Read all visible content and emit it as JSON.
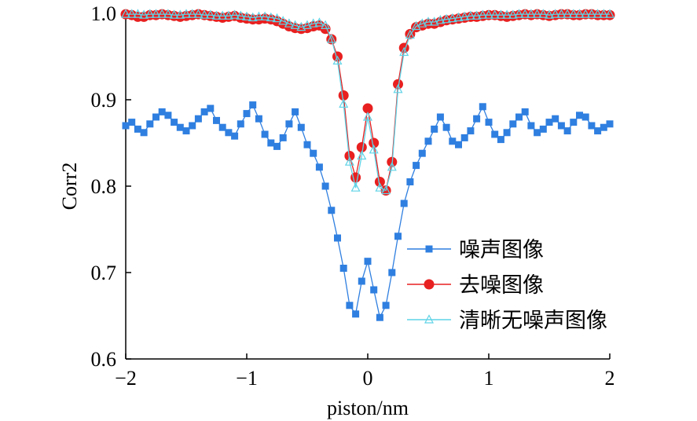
{
  "chart_data": {
    "type": "line",
    "title": "",
    "xlabel": "piston/nm",
    "ylabel": "Corr2",
    "xlim": [
      -2,
      2
    ],
    "ylim": [
      0.6,
      1.0
    ],
    "xticks": [
      -2,
      -1,
      0,
      1,
      2
    ],
    "xtick_labels": [
      "−2",
      "−1",
      "0",
      "1",
      "2"
    ],
    "yticks": [
      0.6,
      0.7,
      0.8,
      0.9,
      1.0
    ],
    "ytick_labels": [
      "0.6",
      "0.7",
      "0.8",
      "0.9",
      "1.0"
    ],
    "legend_position": "lower-right",
    "x": [
      -2.0,
      -1.95,
      -1.9,
      -1.85,
      -1.8,
      -1.75,
      -1.7,
      -1.65,
      -1.6,
      -1.55,
      -1.5,
      -1.45,
      -1.4,
      -1.35,
      -1.3,
      -1.25,
      -1.2,
      -1.15,
      -1.1,
      -1.05,
      -1.0,
      -0.95,
      -0.9,
      -0.85,
      -0.8,
      -0.75,
      -0.7,
      -0.65,
      -0.6,
      -0.55,
      -0.5,
      -0.45,
      -0.4,
      -0.35,
      -0.3,
      -0.25,
      -0.2,
      -0.15,
      -0.1,
      -0.05,
      0.0,
      0.05,
      0.1,
      0.15,
      0.2,
      0.25,
      0.3,
      0.35,
      0.4,
      0.45,
      0.5,
      0.55,
      0.6,
      0.65,
      0.7,
      0.75,
      0.8,
      0.85,
      0.9,
      0.95,
      1.0,
      1.05,
      1.1,
      1.15,
      1.2,
      1.25,
      1.3,
      1.35,
      1.4,
      1.45,
      1.5,
      1.55,
      1.6,
      1.65,
      1.7,
      1.75,
      1.8,
      1.85,
      1.9,
      1.95,
      2.0
    ],
    "series": [
      {
        "name": "噪声图像",
        "color": "#2f7fe0",
        "marker": "square",
        "values": [
          0.87,
          0.874,
          0.866,
          0.862,
          0.872,
          0.88,
          0.886,
          0.882,
          0.874,
          0.868,
          0.864,
          0.87,
          0.878,
          0.886,
          0.89,
          0.876,
          0.868,
          0.862,
          0.858,
          0.872,
          0.884,
          0.894,
          0.878,
          0.86,
          0.85,
          0.846,
          0.856,
          0.872,
          0.886,
          0.868,
          0.848,
          0.838,
          0.822,
          0.8,
          0.772,
          0.74,
          0.705,
          0.662,
          0.652,
          0.69,
          0.713,
          0.68,
          0.648,
          0.662,
          0.7,
          0.742,
          0.78,
          0.805,
          0.824,
          0.838,
          0.852,
          0.866,
          0.88,
          0.868,
          0.852,
          0.848,
          0.856,
          0.864,
          0.878,
          0.892,
          0.874,
          0.86,
          0.854,
          0.862,
          0.872,
          0.88,
          0.886,
          0.87,
          0.862,
          0.866,
          0.874,
          0.878,
          0.87,
          0.864,
          0.874,
          0.882,
          0.88,
          0.87,
          0.864,
          0.868,
          0.872
        ]
      },
      {
        "name": "去噪图像",
        "color": "#e82020",
        "marker": "circle",
        "values": [
          0.999,
          0.998,
          0.996,
          0.996,
          0.998,
          0.998,
          0.999,
          0.998,
          0.997,
          0.996,
          0.997,
          0.998,
          0.999,
          0.998,
          0.997,
          0.996,
          0.995,
          0.996,
          0.997,
          0.995,
          0.994,
          0.993,
          0.993,
          0.994,
          0.993,
          0.991,
          0.988,
          0.985,
          0.983,
          0.982,
          0.983,
          0.985,
          0.986,
          0.982,
          0.97,
          0.95,
          0.905,
          0.835,
          0.81,
          0.845,
          0.89,
          0.85,
          0.805,
          0.795,
          0.828,
          0.918,
          0.96,
          0.976,
          0.984,
          0.986,
          0.988,
          0.988,
          0.99,
          0.992,
          0.993,
          0.994,
          0.995,
          0.996,
          0.996,
          0.997,
          0.998,
          0.998,
          0.997,
          0.996,
          0.997,
          0.998,
          0.999,
          0.998,
          0.999,
          0.998,
          0.997,
          0.998,
          0.999,
          0.999,
          0.998,
          0.998,
          0.999,
          0.999,
          0.998,
          0.998,
          0.998
        ]
      },
      {
        "name": "清晰无噪声图像",
        "color": "#5fd3e6",
        "marker": "triangle",
        "values": [
          0.999,
          0.999,
          0.999,
          0.998,
          0.999,
          0.999,
          0.999,
          0.999,
          0.998,
          0.998,
          0.999,
          0.999,
          0.999,
          0.998,
          0.998,
          0.997,
          0.997,
          0.997,
          0.998,
          0.997,
          0.996,
          0.995,
          0.996,
          0.996,
          0.995,
          0.994,
          0.991,
          0.988,
          0.986,
          0.984,
          0.986,
          0.988,
          0.989,
          0.986,
          0.97,
          0.945,
          0.895,
          0.828,
          0.798,
          0.835,
          0.88,
          0.842,
          0.798,
          0.795,
          0.822,
          0.912,
          0.955,
          0.975,
          0.985,
          0.988,
          0.99,
          0.99,
          0.992,
          0.993,
          0.994,
          0.995,
          0.996,
          0.997,
          0.997,
          0.998,
          0.998,
          0.998,
          0.998,
          0.998,
          0.998,
          0.999,
          0.999,
          0.999,
          0.999,
          0.999,
          0.998,
          0.999,
          0.999,
          0.999,
          0.999,
          0.999,
          0.999,
          0.999,
          0.999,
          0.999,
          0.999
        ]
      }
    ]
  }
}
